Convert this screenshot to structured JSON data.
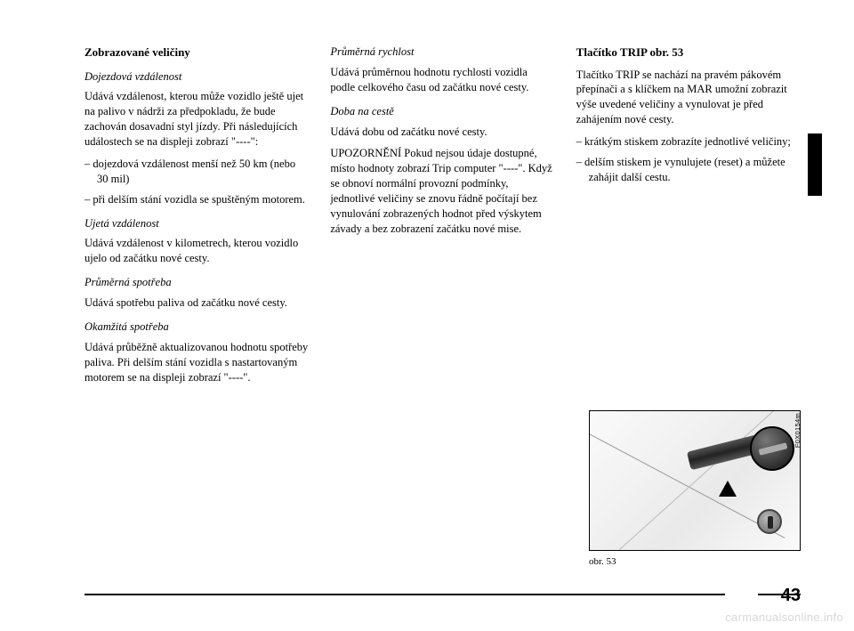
{
  "page_number": "43",
  "watermark": "carmanualsonline.info",
  "figure": {
    "caption": "obr. 53",
    "code": "F0X0154m"
  },
  "col1": {
    "h1": "Zobrazované veličiny",
    "s1_title": "Dojezdová vzdálenost",
    "s1_p1": "Udává vzdálenost, kterou může vozidlo ještě ujet na palivo v nádrži za předpokladu, že bude zachován dosavadní styl jízdy. Při následujících událostech se na displeji zobrazí \"----\":",
    "s1_li1": "– dojezdová vzdálenost menší než 50 km (nebo 30 mil)",
    "s1_li2": "– při delším stání vozidla se spuštěným motorem.",
    "s2_title": "Ujetá vzdálenost",
    "s2_p1": "Udává vzdálenost v kilometrech, kterou vozidlo ujelo od začátku nové cesty.",
    "s3_title": "Průměrná spotřeba",
    "s3_p1": "Udává spotřebu paliva od začátku nové cesty.",
    "s4_title": "Okamžitá spotřeba",
    "s4_p1": "Udává průběžně aktualizovanou hodnotu spotřeby paliva. Při delším stání vozidla s nastartovaným motorem se na displeji zobrazí \"----\"."
  },
  "col2": {
    "s1_title": "Průměrná rychlost",
    "s1_p1": "Udává průměrnou hodnotu rychlosti vozidla podle celkového času od začátku nové cesty.",
    "s2_title": "Doba na cestě",
    "s2_p1": "Udává dobu od začátku nové cesty.",
    "s2_p2": "UPOZORNĚNÍ Pokud nejsou údaje dostupné, místo hodnoty zobrazí Trip computer \"----\". Když se obnoví normální provozní podmínky, jednotlivé veličiny se znovu řádně počítají bez vynulování zobrazených hodnot před výskytem závady a bez zobrazení začátku nové mise."
  },
  "col3": {
    "h1": "Tlačítko TRIP obr. 53",
    "p1": "Tlačítko TRIP se nachází na pravém pákovém přepínači a s klíčkem na MAR umožní zobrazit výše uvedené veličiny a vynulovat je před zahájením nové cesty.",
    "li1": "– krátkým stiskem zobrazíte jednotlivé veličiny;",
    "li2": "– delším stiskem je vynulujete (reset) a můžete zahájit další cestu."
  },
  "colors": {
    "text": "#000000",
    "background": "#ffffff",
    "watermark": "#d7d7d7",
    "tab": "#000000"
  }
}
